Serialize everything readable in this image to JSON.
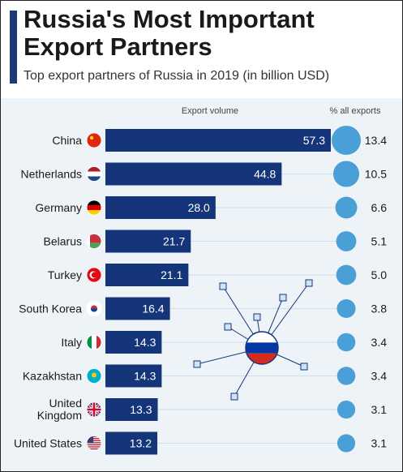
{
  "header": {
    "title": "Russia's Most Important Export Partners",
    "subtitle": "Top export partners of Russia in 2019 (in billion USD)"
  },
  "colors": {
    "bar": "#14357a",
    "bubble": "#4a9fd6",
    "accent": "#1a3a7a",
    "background": "#eef3f8"
  },
  "chart_data": {
    "type": "bar",
    "orientation": "horizontal",
    "title": "Russia's Most Important Export Partners",
    "subtitle": "Top export partners of Russia in 2019 (in billion USD)",
    "column_headers": {
      "bars": "Export volume",
      "bubbles": "% all exports"
    },
    "categories": [
      "China",
      "Netherlands",
      "Germany",
      "Belarus",
      "Turkey",
      "South Korea",
      "Italy",
      "Kazakhstan",
      "United Kingdom",
      "United States"
    ],
    "category_label_lines": [
      [
        "China"
      ],
      [
        "Netherlands"
      ],
      [
        "Germany"
      ],
      [
        "Belarus"
      ],
      [
        "Turkey"
      ],
      [
        "South Korea"
      ],
      [
        "Italy"
      ],
      [
        "Kazakhstan"
      ],
      [
        "United",
        "Kingdom"
      ],
      [
        "United States"
      ]
    ],
    "flags": [
      "china-flag-icon",
      "netherlands-flag-icon",
      "germany-flag-icon",
      "belarus-flag-icon",
      "turkey-flag-icon",
      "south-korea-flag-icon",
      "italy-flag-icon",
      "kazakhstan-flag-icon",
      "united-kingdom-flag-icon",
      "united-states-flag-icon"
    ],
    "series": [
      {
        "values": [
          57.3,
          44.8,
          28.0,
          21.7,
          21.1,
          16.4,
          14.3,
          14.3,
          13.3,
          13.2
        ],
        "value_labels": [
          "57.3",
          "44.8",
          "28.0",
          "21.7",
          "21.1",
          "16.4",
          "14.3",
          "14.3",
          "13.3",
          "13.2"
        ]
      },
      {
        "values": [
          13.4,
          10.5,
          6.6,
          5.1,
          5.0,
          3.8,
          3.4,
          3.4,
          3.1,
          3.1
        ],
        "value_labels": [
          "13.4",
          "10.5",
          "6.6",
          "5.1",
          "5.0",
          "3.8",
          "3.4",
          "3.4",
          "3.1",
          "3.1"
        ]
      }
    ],
    "grid": false,
    "legend": "none"
  },
  "decoration": {
    "center_icon": "russia-flag-network-icon"
  }
}
